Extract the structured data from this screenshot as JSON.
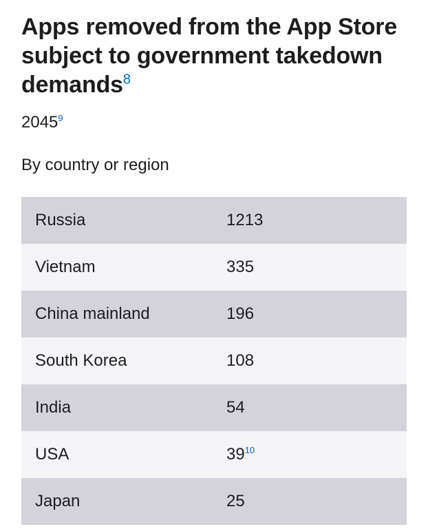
{
  "heading": {
    "title": "Apps removed from the App Store subject to government takedown demands",
    "title_footnote": "8"
  },
  "summary": {
    "total": "2045",
    "total_footnote": "9",
    "breakdown_label": "By country or region"
  },
  "table": {
    "rows": [
      {
        "country": "Russia",
        "count": "1213",
        "footnote": ""
      },
      {
        "country": "Vietnam",
        "count": "335",
        "footnote": ""
      },
      {
        "country": "China mainland",
        "count": "196",
        "footnote": ""
      },
      {
        "country": "South Korea",
        "count": "108",
        "footnote": ""
      },
      {
        "country": "India",
        "count": "54",
        "footnote": ""
      },
      {
        "country": "USA",
        "count": "39",
        "footnote": "10"
      },
      {
        "country": "Japan",
        "count": "25",
        "footnote": ""
      }
    ]
  },
  "colors": {
    "text": "#1d1d1f",
    "footnote_link": "#0066cc",
    "row_shaded": "#d4d3db",
    "row_plain": "#f5f5f7"
  }
}
